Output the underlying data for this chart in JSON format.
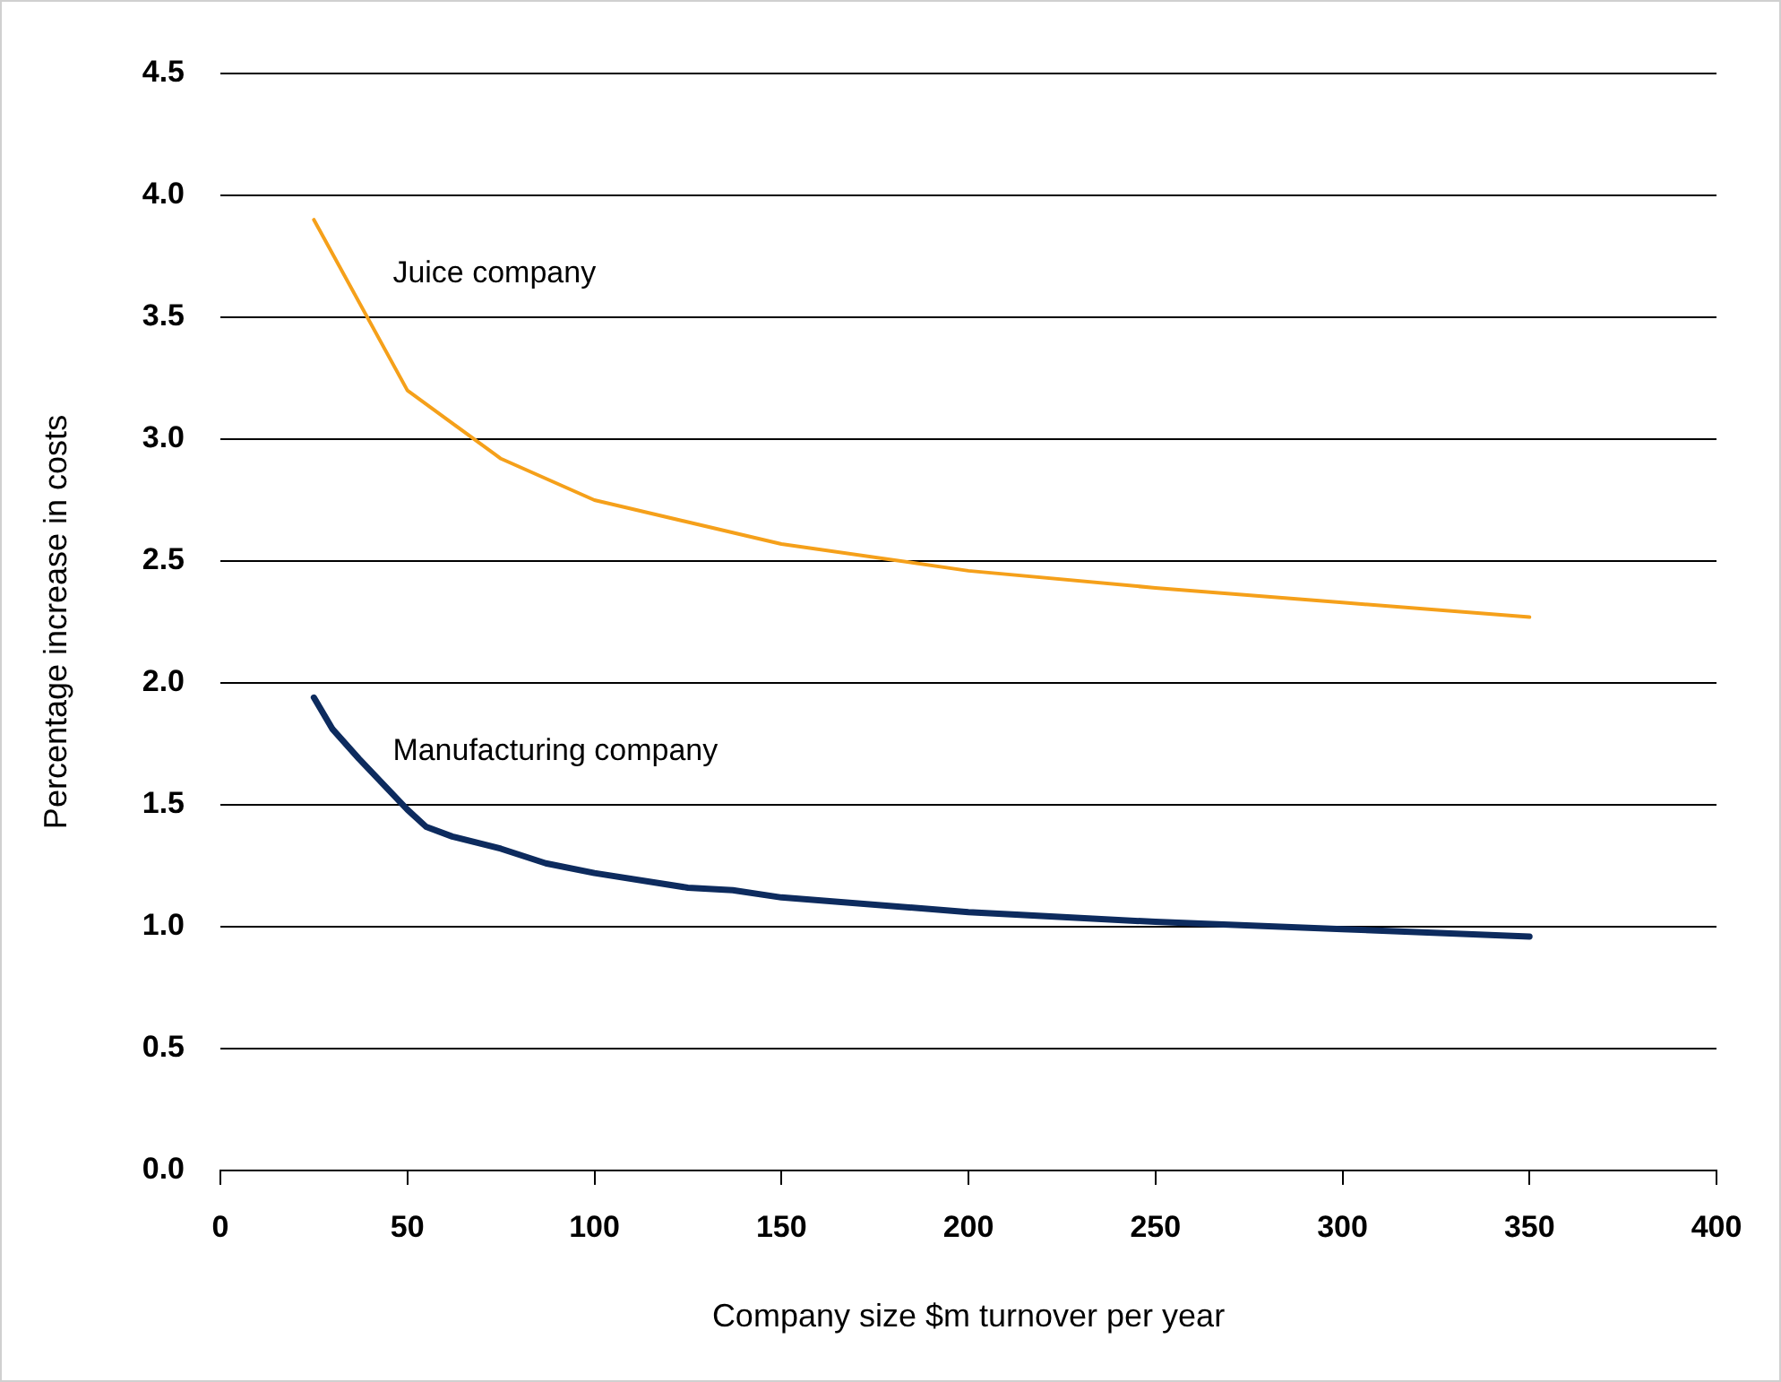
{
  "chart_data": {
    "type": "line",
    "xlabel": "Company size $m turnover per year",
    "ylabel": "Percentage increase in costs",
    "xlim": [
      0,
      400
    ],
    "xticks": [
      0,
      50,
      100,
      150,
      200,
      250,
      300,
      350,
      400
    ],
    "ylim": [
      0,
      4.5
    ],
    "yticks": [
      {
        "value": 0,
        "label": "0.0"
      },
      0.5,
      {
        "value": 1,
        "label": "1.0"
      },
      1.5,
      {
        "value": 2,
        "label": "2.0"
      },
      2.5,
      {
        "value": 3,
        "label": "3.0"
      },
      3.5,
      {
        "value": 4,
        "label": "4.0"
      },
      4.5
    ],
    "grid": "y",
    "legend": false,
    "marker": "none",
    "line_style": "solid",
    "series": [
      {
        "name": "Juice company",
        "color": "#f5a01a",
        "x": [
          25,
          50,
          75,
          100,
          150,
          200,
          250,
          300,
          350
        ],
        "values": [
          3.9,
          3.2,
          2.92,
          2.75,
          2.57,
          2.46,
          2.39,
          2.33,
          2.27
        ]
      },
      {
        "name": "Manufacturing company",
        "color": "#0d2b5e",
        "x": [
          25,
          30,
          37,
          50,
          55,
          62,
          75,
          87,
          100,
          125,
          137,
          150,
          200,
          250,
          300,
          350
        ],
        "values": [
          1.94,
          1.81,
          1.69,
          1.48,
          1.41,
          1.37,
          1.32,
          1.26,
          1.22,
          1.16,
          1.15,
          1.12,
          1.06,
          1.02,
          0.99,
          0.96
        ]
      }
    ]
  }
}
